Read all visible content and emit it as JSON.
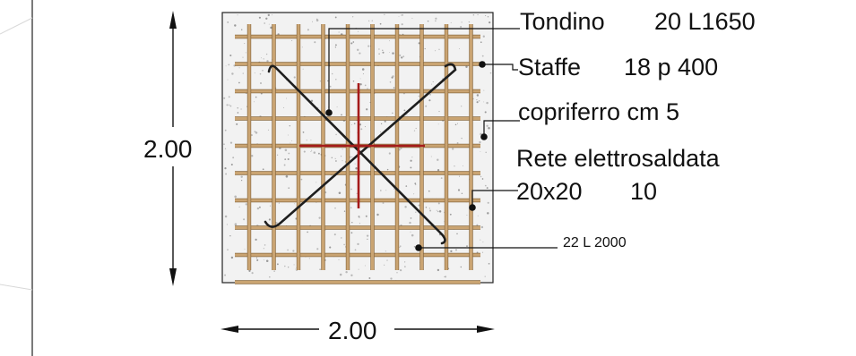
{
  "labels": {
    "tondino": "Tondino",
    "tondino_spec": "20 L1650",
    "staffe": "Staffe",
    "staffe_spec": "18 p 400",
    "copriferro": "copriferro cm 5",
    "rete": "Rete elettrosaldata",
    "rete_size": "20x20",
    "rete_diam": "10",
    "bar_spec": "22 L 2000"
  },
  "dimensions": {
    "height": "2.00",
    "width": "2.00"
  },
  "colors": {
    "concrete_fill": "#f2f2f2",
    "mesh": "#caa472",
    "mesh_edge": "#8a6a40",
    "cross_bars": "#1e1e1e",
    "center_cross": "#a51b1b",
    "leader": "#111111"
  }
}
